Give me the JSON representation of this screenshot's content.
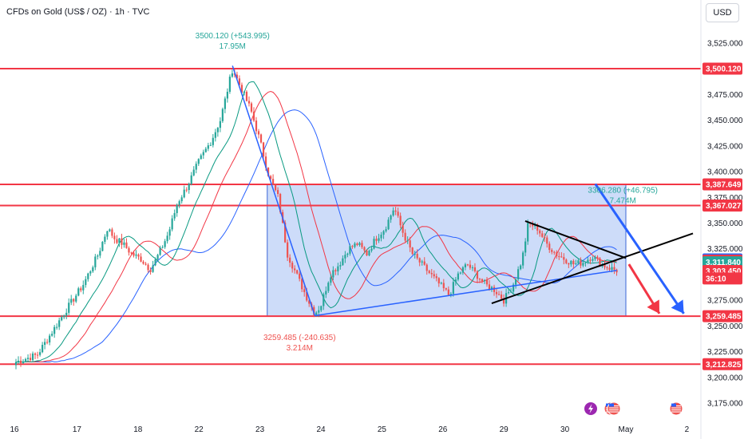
{
  "header": {
    "title": "CFDs on Gold (US$ / OZ) · 1h · TVC",
    "currency": "USD"
  },
  "colors": {
    "level": "#f23645",
    "box_fill": "#bcd0f7",
    "box_stroke": "#3b66d6",
    "trend": "#2962ff",
    "bull": "#26a69a",
    "bear": "#ef5350",
    "arrow_blue": "#2962ff",
    "arrow_red": "#f23645"
  },
  "chart_data": {
    "type": "candlestick",
    "title": "CFDs on Gold (US$ / OZ) · 1h · TVC",
    "ylim": [
      3160,
      3540
    ],
    "y_ticks": [
      3175,
      3200,
      3225,
      3250,
      3275,
      3300,
      3325,
      3350,
      3375,
      3400,
      3425,
      3450,
      3475,
      3525
    ],
    "x_ticks": [
      "16",
      "17",
      "18",
      "22",
      "23",
      "24",
      "25",
      "26",
      "29",
      "30",
      "May",
      "2"
    ],
    "x_range_days": [
      0,
      11.5
    ],
    "grid": false,
    "levels": [
      3500.12,
      3387.649,
      3367.027,
      3259.485,
      3212.825
    ],
    "price_tags": [
      {
        "text": "3,500.120",
        "value": 3500.12,
        "color": "#f23645"
      },
      {
        "text": "3,387.649",
        "value": 3387.649,
        "color": "#f23645"
      },
      {
        "text": "3,367.027",
        "value": 3367.027,
        "color": "#f23645"
      },
      {
        "text": "3,314.669",
        "value": 3314.669,
        "color": "#2962ff"
      },
      {
        "text": "3,313.536",
        "value": 3313.536,
        "color": "#f23645"
      },
      {
        "text": "3,311.840",
        "value": 3311.84,
        "color": "#26a69a"
      },
      {
        "text": "3,303.450",
        "value": 3303.45,
        "color": "#f23645"
      },
      {
        "text": "36:10",
        "value": 3296.2,
        "color": "#f23645"
      },
      {
        "text": "3,259.485",
        "value": 3259.485,
        "color": "#f23645"
      },
      {
        "text": "3,212.825",
        "value": 3212.825,
        "color": "#f23645"
      }
    ],
    "annotations": [
      {
        "line1": "3500.120 (+543.995)",
        "line2": "17.95M",
        "day": 3.55,
        "value": 3500.12,
        "color": "#26a69a",
        "pos": "above"
      },
      {
        "line1": "3259.485 (-240.635)",
        "line2": "3.214M",
        "day": 4.65,
        "value": 3259.485,
        "color": "#ef5350",
        "pos": "below"
      },
      {
        "line1": "3306.280 (+46.795)",
        "line2": "7.474M",
        "day": 9.95,
        "value": 3350,
        "color": "#26a69a",
        "pos": "above"
      }
    ],
    "close_path": [
      [
        0,
        3215
      ],
      [
        0.35,
        3222
      ],
      [
        0.6,
        3245
      ],
      [
        0.85,
        3268
      ],
      [
        1.1,
        3290
      ],
      [
        1.35,
        3320
      ],
      [
        1.5,
        3345
      ],
      [
        1.62,
        3335
      ],
      [
        1.75,
        3330
      ],
      [
        1.9,
        3320
      ],
      [
        2.05,
        3315
      ],
      [
        2.2,
        3305
      ],
      [
        2.3,
        3315
      ],
      [
        2.5,
        3340
      ],
      [
        2.65,
        3370
      ],
      [
        2.8,
        3385
      ],
      [
        3.0,
        3410
      ],
      [
        3.2,
        3430
      ],
      [
        3.35,
        3450
      ],
      [
        3.55,
        3500
      ],
      [
        3.7,
        3480
      ],
      [
        3.85,
        3460
      ],
      [
        4.0,
        3430
      ],
      [
        4.15,
        3395
      ],
      [
        4.3,
        3375
      ],
      [
        4.45,
        3320
      ],
      [
        4.6,
        3300
      ],
      [
        4.75,
        3280
      ],
      [
        4.9,
        3262
      ],
      [
        5.0,
        3270
      ],
      [
        5.15,
        3300
      ],
      [
        5.3,
        3310
      ],
      [
        5.45,
        3325
      ],
      [
        5.6,
        3330
      ],
      [
        5.75,
        3320
      ],
      [
        5.9,
        3335
      ],
      [
        6.05,
        3345
      ],
      [
        6.2,
        3365
      ],
      [
        6.35,
        3340
      ],
      [
        6.5,
        3320
      ],
      [
        6.65,
        3310
      ],
      [
        6.8,
        3300
      ],
      [
        6.95,
        3290
      ],
      [
        7.1,
        3280
      ],
      [
        7.25,
        3300
      ],
      [
        7.4,
        3310
      ],
      [
        7.55,
        3300
      ],
      [
        7.7,
        3290
      ],
      [
        7.85,
        3285
      ],
      [
        8.0,
        3275
      ],
      [
        8.15,
        3290
      ],
      [
        8.3,
        3315
      ],
      [
        8.4,
        3350
      ],
      [
        8.55,
        3345
      ],
      [
        8.7,
        3330
      ],
      [
        8.85,
        3320
      ],
      [
        9.0,
        3315
      ],
      [
        9.15,
        3310
      ],
      [
        9.3,
        3312
      ],
      [
        9.45,
        3318
      ],
      [
        9.6,
        3310
      ],
      [
        9.75,
        3306
      ],
      [
        9.85,
        3304
      ]
    ],
    "series": [
      {
        "type": "line",
        "color": "#2962ff",
        "smooth": 22,
        "lag": 14
      },
      {
        "type": "line",
        "color": "#f23645",
        "smooth": 12,
        "lag": 8
      },
      {
        "type": "line",
        "color": "#089981",
        "smooth": 6,
        "lag": 4
      }
    ],
    "box": {
      "day0": 4.12,
      "day1": 10.0,
      "top": 3387.649,
      "bottom": 3259.485
    },
    "trendlines": [
      {
        "from": [
          3.55,
          3503
        ],
        "to": [
          4.9,
          3260
        ],
        "color": "#2962ff",
        "width": 1.5
      },
      {
        "from": [
          4.9,
          3260
        ],
        "to": [
          9.85,
          3304
        ],
        "color": "#2962ff",
        "width": 1.5
      },
      {
        "from": [
          8.35,
          3352
        ],
        "to": [
          10.0,
          3316
        ],
        "color": "#000000",
        "width": 2
      },
      {
        "from": [
          7.8,
          3272
        ],
        "to": [
          11.1,
          3340
        ],
        "color": "#000000",
        "width": 2
      },
      {
        "from": [
          9.5,
          3388
        ],
        "to": [
          10.95,
          3262
        ],
        "color": "#2962ff",
        "width": 3,
        "arrow_end": true
      },
      {
        "from": [
          10.05,
          3310
        ],
        "to": [
          10.55,
          3262
        ],
        "color": "#f23645",
        "width": 3,
        "arrow_end": true
      }
    ]
  }
}
